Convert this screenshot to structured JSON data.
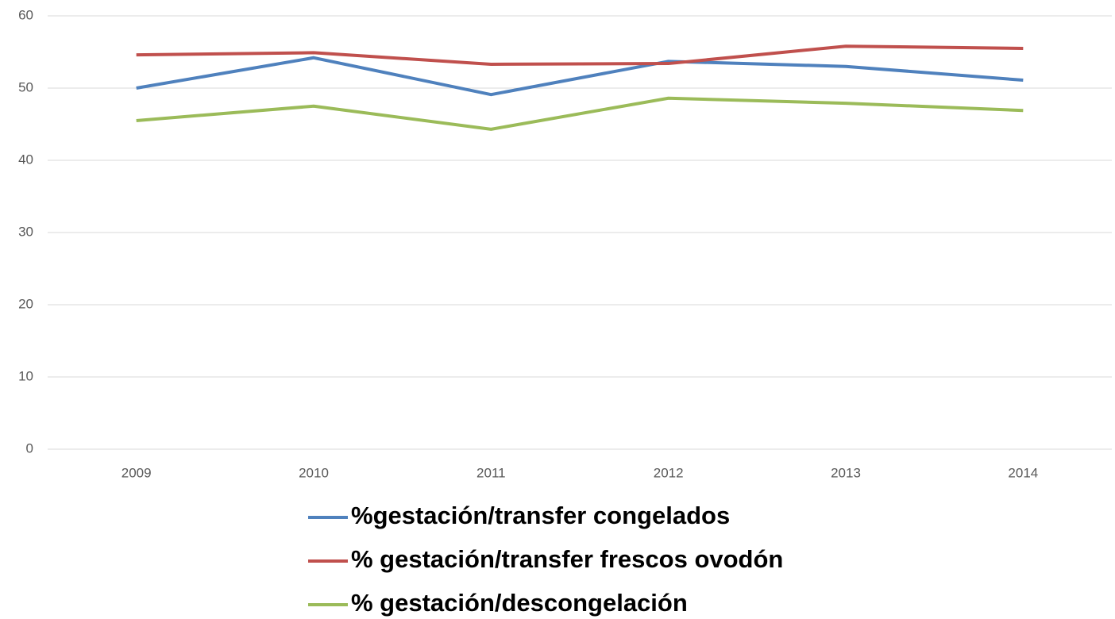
{
  "chart_data": {
    "type": "line",
    "categories": [
      "2009",
      "2010",
      "2011",
      "2012",
      "2013",
      "2014"
    ],
    "series": [
      {
        "name": "%gestación/transfer congelados",
        "color": "#4f81bd",
        "values": [
          50.0,
          54.2,
          49.1,
          53.7,
          53.0,
          51.1
        ]
      },
      {
        "name": "% gestación/transfer frescos ovodón",
        "color": "#c0504d",
        "values": [
          54.6,
          54.9,
          53.3,
          53.4,
          55.8,
          55.5
        ]
      },
      {
        "name": "% gestación/descongelación",
        "color": "#9bbb59",
        "values": [
          45.5,
          47.5,
          44.3,
          48.6,
          47.9,
          46.9
        ]
      }
    ],
    "ylim": [
      0,
      60
    ],
    "yticks": [
      0,
      10,
      20,
      30,
      40,
      50,
      60
    ],
    "grid": true,
    "legend": "bottom"
  }
}
